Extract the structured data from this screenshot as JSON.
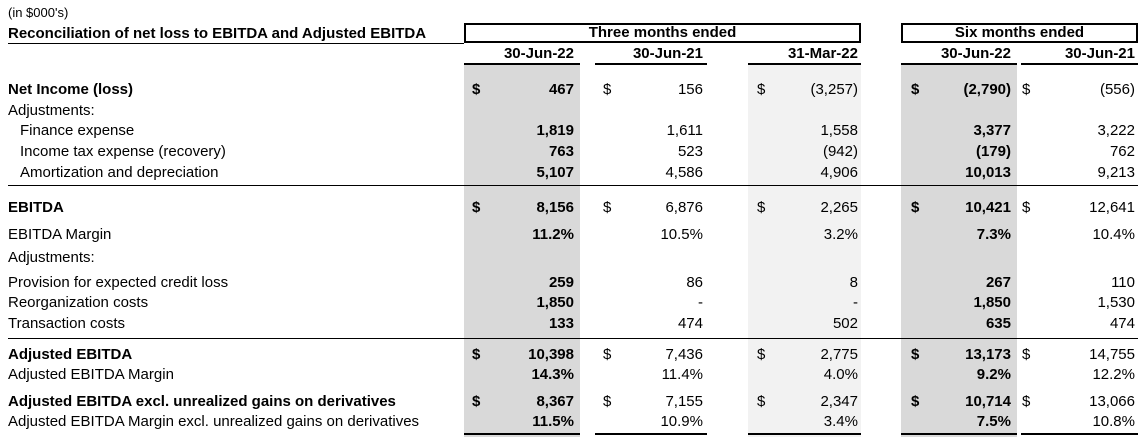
{
  "units_note": "(in $000's)",
  "title": "Reconciliation of net loss to EBITDA and Adjusted EBITDA",
  "group_three": "Three months ended",
  "group_six": "Six months ended",
  "columns": [
    "30-Jun-22",
    "30-Jun-21",
    "31-Mar-22",
    "30-Jun-22",
    "30-Jun-21"
  ],
  "currency_symbol": "$",
  "rows": [
    {
      "label": "Net Income (loss)",
      "values": [
        "467",
        "156",
        "(3,257)",
        "(2,790)",
        "(556)"
      ]
    },
    {
      "label": "Adjustments:"
    },
    {
      "label": "Finance expense",
      "values": [
        "1,819",
        "1,611",
        "1,558",
        "3,377",
        "3,222"
      ]
    },
    {
      "label": "Income tax expense (recovery)",
      "values": [
        "763",
        "523",
        "(942)",
        "(179)",
        "762"
      ]
    },
    {
      "label": "Amortization and depreciation",
      "values": [
        "5,107",
        "4,586",
        "4,906",
        "10,013",
        "9,213"
      ]
    },
    {
      "label": "EBITDA",
      "values": [
        "8,156",
        "6,876",
        "2,265",
        "10,421",
        "12,641"
      ]
    },
    {
      "label": "EBITDA Margin",
      "values": [
        "11.2%",
        "10.5%",
        "3.2%",
        "7.3%",
        "10.4%"
      ]
    },
    {
      "label": "Adjustments:"
    },
    {
      "label": "Provision for expected credit loss",
      "values": [
        "259",
        "86",
        "8",
        "267",
        "110"
      ]
    },
    {
      "label": "Reorganization costs",
      "values": [
        "1,850",
        "-",
        "-",
        "1,850",
        "1,530"
      ]
    },
    {
      "label": "Transaction costs",
      "values": [
        "133",
        "474",
        "502",
        "635",
        "474"
      ]
    },
    {
      "label": "Adjusted EBITDA",
      "values": [
        "10,398",
        "7,436",
        "2,775",
        "13,173",
        "14,755"
      ]
    },
    {
      "label": "Adjusted EBITDA Margin",
      "values": [
        "14.3%",
        "11.4%",
        "4.0%",
        "9.2%",
        "12.2%"
      ]
    },
    {
      "label": "Adjusted EBITDA excl. unrealized gains on derivatives",
      "values": [
        "8,367",
        "7,155",
        "2,347",
        "10,714",
        "13,066"
      ]
    },
    {
      "label": "Adjusted EBITDA Margin excl. unrealized gains on derivatives",
      "values": [
        "11.5%",
        "10.9%",
        "3.4%",
        "7.5%",
        "10.8%"
      ]
    }
  ]
}
